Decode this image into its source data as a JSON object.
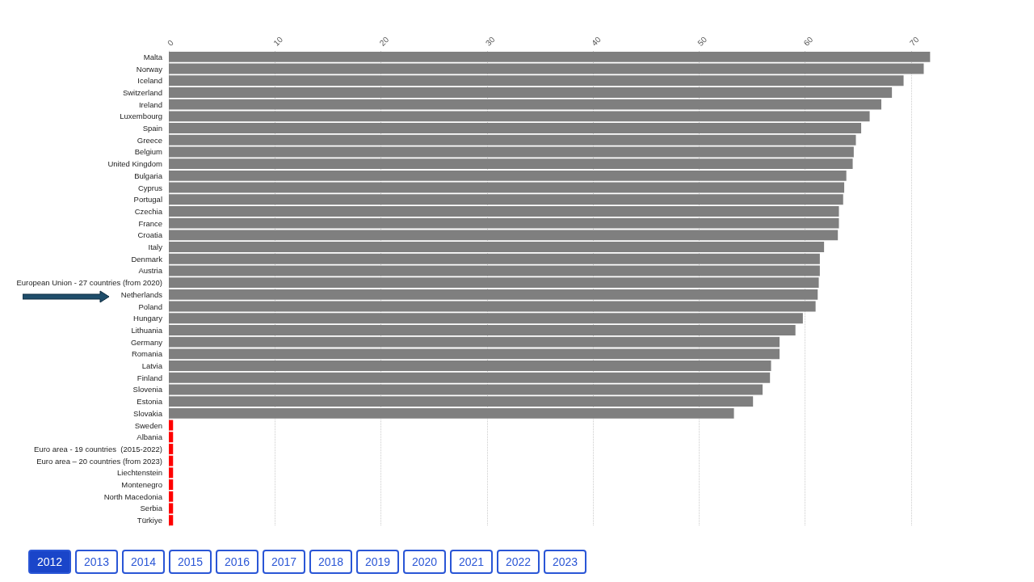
{
  "chart_data": {
    "type": "bar",
    "orientation": "horizontal",
    "categories": [
      "Malta",
      "Norway",
      "Iceland",
      "Switzerland",
      "Ireland",
      "Luxembourg",
      "Spain",
      "Greece",
      "Belgium",
      "United Kingdom",
      "Bulgaria",
      "Cyprus",
      "Portugal",
      "Czechia",
      "France",
      "Croatia",
      "Italy",
      "Denmark",
      "Austria",
      "European Union - 27 countries (from 2020)",
      "Netherlands",
      "Poland",
      "Hungary",
      "Lithuania",
      "Germany",
      "Romania",
      "Latvia",
      "Finland",
      "Slovenia",
      "Estonia",
      "Slovakia",
      "Sweden",
      "Albania",
      "Euro area - 19 countries  (2015-2022)",
      "Euro area – 20 countries (from 2023)",
      "Liechtenstein",
      "Montenegro",
      "North Macedonia",
      "Serbia",
      "Türkiye"
    ],
    "values": [
      71.8,
      71.2,
      69.3,
      68.2,
      67.2,
      66.1,
      65.3,
      64.8,
      64.6,
      64.5,
      63.9,
      63.7,
      63.6,
      63.2,
      63.2,
      63.1,
      61.8,
      61.4,
      61.4,
      61.3,
      61.2,
      61.0,
      59.8,
      59.1,
      57.6,
      57.6,
      56.8,
      56.7,
      56.0,
      55.1,
      53.3,
      0.4,
      0.4,
      0.4,
      0.4,
      0.4,
      0.4,
      0.4,
      0.4,
      0.4
    ],
    "colors": [
      "#7f7f7f",
      "#7f7f7f",
      "#7f7f7f",
      "#7f7f7f",
      "#7f7f7f",
      "#7f7f7f",
      "#7f7f7f",
      "#7f7f7f",
      "#7f7f7f",
      "#7f7f7f",
      "#7f7f7f",
      "#7f7f7f",
      "#7f7f7f",
      "#7f7f7f",
      "#7f7f7f",
      "#7f7f7f",
      "#7f7f7f",
      "#7f7f7f",
      "#7f7f7f",
      "#7f7f7f",
      "#7f7f7f",
      "#7f7f7f",
      "#7f7f7f",
      "#7f7f7f",
      "#7f7f7f",
      "#7f7f7f",
      "#7f7f7f",
      "#7f7f7f",
      "#7f7f7f",
      "#7f7f7f",
      "#7f7f7f",
      "#ff0000",
      "#ff0000",
      "#ff0000",
      "#ff0000",
      "#ff0000",
      "#ff0000",
      "#ff0000",
      "#ff0000",
      "#ff0000"
    ],
    "xlim": [
      0,
      72
    ],
    "xticks": [
      0,
      10,
      20,
      30,
      40,
      50,
      60,
      70
    ],
    "grid": "x",
    "annotations": [
      "2012",
      "2013",
      "2014",
      "2015",
      "2016",
      "2017",
      "2018",
      "2019",
      "2020",
      "2021",
      "2022",
      "2023"
    ]
  }
}
